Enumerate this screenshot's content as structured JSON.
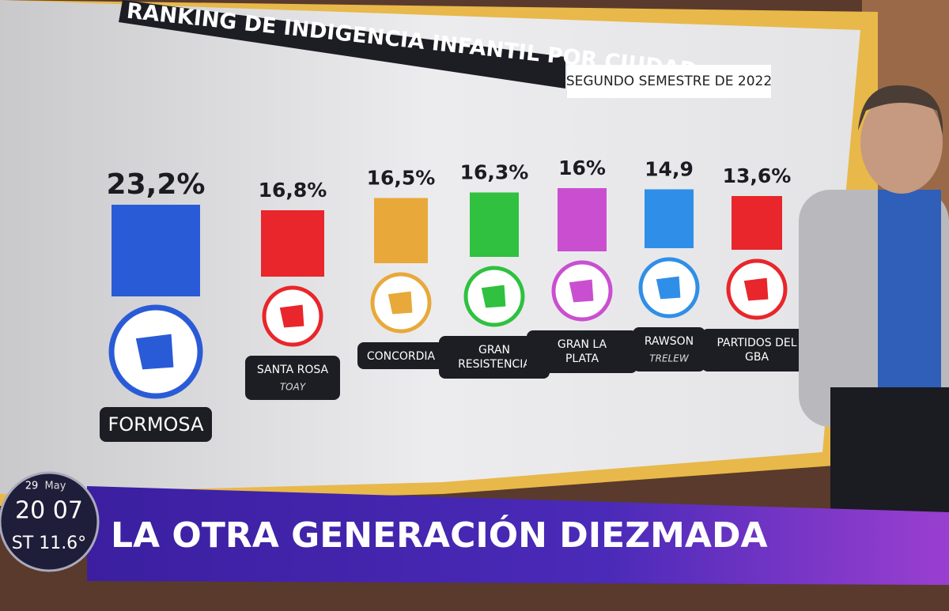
{
  "chart_data": {
    "type": "bar",
    "title": "RANKING DE INDIGENCIA INFANTIL POR CIUDAD",
    "subtitle": "SEGUNDO SEMESTRE DE 2022",
    "categories": [
      "FORMOSA",
      "SANTA ROSA",
      "CONCORDIA",
      "GRAN RESISTENCIA",
      "GRAN LA PLATA",
      "RAWSON",
      "PARTIDOS DEL GBA"
    ],
    "sublabels": [
      null,
      "TOAY",
      null,
      null,
      null,
      "TRELEW",
      null
    ],
    "values": [
      23.2,
      16.8,
      16.5,
      16.3,
      16,
      14.9,
      13.6
    ],
    "value_labels": [
      "23,2%",
      "16,8%",
      "16,5%",
      "16,3%",
      "16%",
      "14,9",
      "13,6%"
    ],
    "colors": [
      "#2a5bd7",
      "#e8262b",
      "#e8a93a",
      "#2fc13f",
      "#c94fd0",
      "#2f8fe8",
      "#e8262b"
    ]
  },
  "overlay": {
    "day": "29",
    "month": "May",
    "time": "20 07",
    "temperature": "ST 11.6°",
    "headline": "LA OTRA GENERACIÓN DIEZMADA"
  }
}
